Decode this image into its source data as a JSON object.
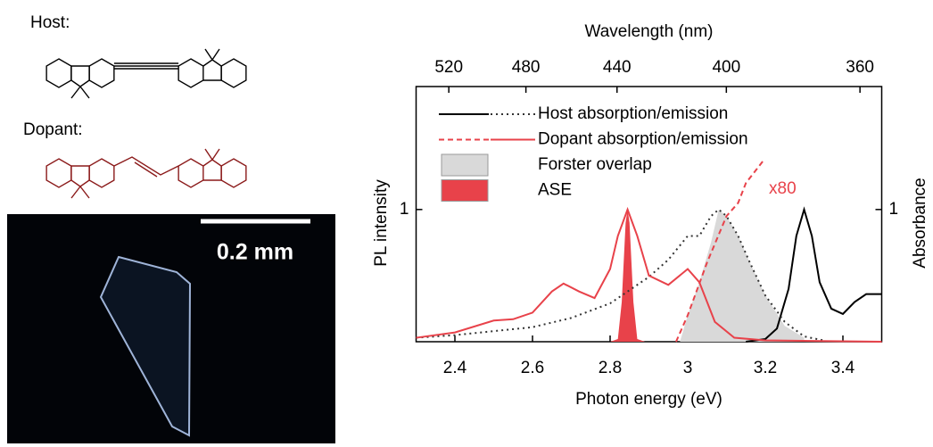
{
  "host_label": "Host:",
  "dopant_label": "Dopant:",
  "scale_bar": "0.2 mm",
  "chart_data": {
    "type": "line",
    "xlabel": "Photon energy (eV)",
    "ylabel": "PL intensity",
    "y2label": "Absorbance",
    "x2label": "Wavelength (nm)",
    "xlim": [
      2.3,
      3.5
    ],
    "xticks": [
      2.4,
      2.6,
      2.8,
      3.0,
      3.2,
      3.4
    ],
    "x2ticks": [
      520,
      480,
      440,
      400,
      360
    ],
    "ylim": [
      0,
      1.93
    ],
    "yticks": [
      1
    ],
    "y2lim": [
      0,
      1.93
    ],
    "y2ticks": [
      1
    ],
    "annotations": [
      "x80"
    ],
    "annotation_color": "#e8424a",
    "series": [
      {
        "name": "Host absorption/emission",
        "color": "#000000",
        "style": "solid",
        "axis": "y2",
        "x": [
          3.15,
          3.2,
          3.23,
          3.26,
          3.28,
          3.3,
          3.32,
          3.34,
          3.37,
          3.4,
          3.43,
          3.46,
          3.5
        ],
        "values": [
          0,
          0.02,
          0.1,
          0.4,
          0.8,
          1.0,
          0.8,
          0.45,
          0.25,
          0.21,
          0.3,
          0.36,
          0.36
        ]
      },
      {
        "color": "#333333",
        "style": "dotted",
        "x": [
          2.3,
          2.4,
          2.5,
          2.6,
          2.7,
          2.8,
          2.9,
          2.95,
          3.0,
          3.03,
          3.06,
          3.08,
          3.1,
          3.13,
          3.16,
          3.2,
          3.25,
          3.3,
          3.35
        ],
        "values": [
          0.03,
          0.05,
          0.08,
          0.11,
          0.18,
          0.29,
          0.49,
          0.62,
          0.8,
          0.8,
          0.95,
          1.0,
          0.95,
          0.8,
          0.6,
          0.35,
          0.15,
          0.04,
          0.01
        ]
      },
      {
        "name": "Dopant absorption/emission",
        "color": "#e8424a",
        "style": "dashed",
        "axis": "y2",
        "x": [
          2.97,
          3.0,
          3.05,
          3.1,
          3.13,
          3.15,
          3.195
        ],
        "values": [
          0,
          0.2,
          0.6,
          0.95,
          1.05,
          1.2,
          1.37
        ]
      },
      {
        "color": "#e8424a",
        "style": "solid",
        "x": [
          2.3,
          2.4,
          2.5,
          2.55,
          2.6,
          2.65,
          2.68,
          2.72,
          2.76,
          2.8,
          2.82,
          2.845,
          2.87,
          2.9,
          2.95,
          3.0,
          3.03,
          3.07,
          3.12,
          3.2,
          3.5
        ],
        "values": [
          0.03,
          0.07,
          0.16,
          0.17,
          0.22,
          0.38,
          0.44,
          0.38,
          0.33,
          0.55,
          0.8,
          1.0,
          0.8,
          0.5,
          0.43,
          0.55,
          0.45,
          0.15,
          0.03,
          0.01,
          0
        ]
      },
      {
        "name": "Forster overlap",
        "color": "#d9d9d9",
        "style": "area",
        "x": [
          2.98,
          3.0,
          3.03,
          3.06,
          3.08,
          3.1,
          3.13,
          3.16,
          3.2,
          3.25,
          3.3
        ],
        "values": [
          0,
          0.2,
          0.45,
          0.75,
          1.0,
          0.95,
          0.8,
          0.6,
          0.35,
          0.12,
          0.03
        ]
      },
      {
        "name": "ASE",
        "color": "#e8424a",
        "style": "area",
        "x": [
          2.8,
          2.82,
          2.83,
          2.84,
          2.845,
          2.85,
          2.86,
          2.87,
          2.89
        ],
        "values": [
          0,
          0.02,
          0.3,
          0.9,
          1.0,
          0.9,
          0.3,
          0.02,
          0
        ]
      }
    ]
  }
}
